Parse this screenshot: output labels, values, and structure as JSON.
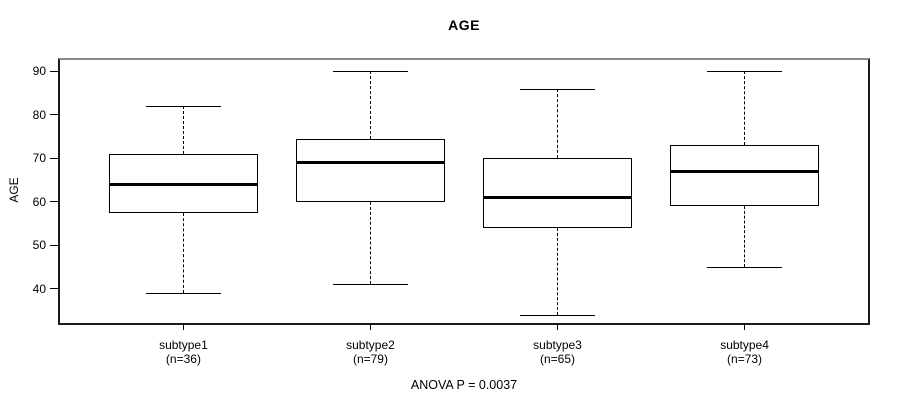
{
  "chart_data": {
    "type": "boxplot",
    "title": "AGE",
    "ylabel": "AGE",
    "caption": "ANOVA P = 0.0037",
    "categories": [
      "subtype1",
      "subtype2",
      "subtype3",
      "subtype4"
    ],
    "category_sublabels": [
      "(n=36)",
      "(n=79)",
      "(n=65)",
      "(n=73)"
    ],
    "counts": [
      36,
      79,
      65,
      73
    ],
    "yticks": [
      40,
      50,
      60,
      70,
      80,
      90
    ],
    "ylim": [
      32.1,
      92.6
    ],
    "grid": false,
    "series": [
      {
        "name": "subtype1",
        "whisker_low": 39,
        "q1": 57.5,
        "median": 64,
        "q3": 71,
        "whisker_high": 82
      },
      {
        "name": "subtype2",
        "whisker_low": 41,
        "q1": 60,
        "median": 69,
        "q3": 74.5,
        "whisker_high": 90
      },
      {
        "name": "subtype3",
        "whisker_low": 34,
        "q1": 54,
        "median": 61,
        "q3": 70,
        "whisker_high": 86
      },
      {
        "name": "subtype4",
        "whisker_low": 45,
        "q1": 59,
        "median": 67,
        "q3": 73,
        "whisker_high": 90
      }
    ],
    "colors": {
      "line": "#000000",
      "background": "#ffffff",
      "frame_top": "#8a8a8a"
    }
  }
}
